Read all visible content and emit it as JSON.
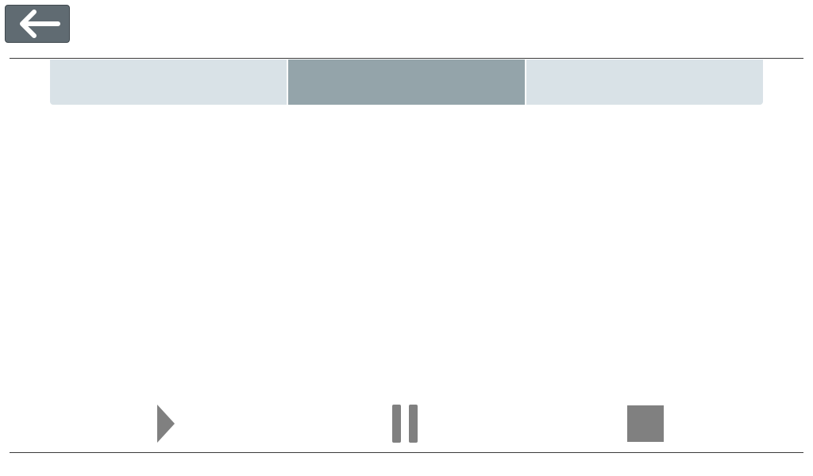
{
  "header": {
    "back_icon": "arrow-left-icon"
  },
  "tabs": [
    {
      "label": "",
      "active": false
    },
    {
      "label": "",
      "active": true
    },
    {
      "label": "",
      "active": false
    }
  ],
  "controls": {
    "play_icon": "play-icon",
    "pause_icon": "pause-icon",
    "stop_icon": "stop-icon"
  },
  "colors": {
    "back_button_bg": "#606b72",
    "tab_inactive": "#d9e2e7",
    "tab_active": "#94a4aa",
    "control_gray": "#808080",
    "rule": "#3a3a3a"
  }
}
